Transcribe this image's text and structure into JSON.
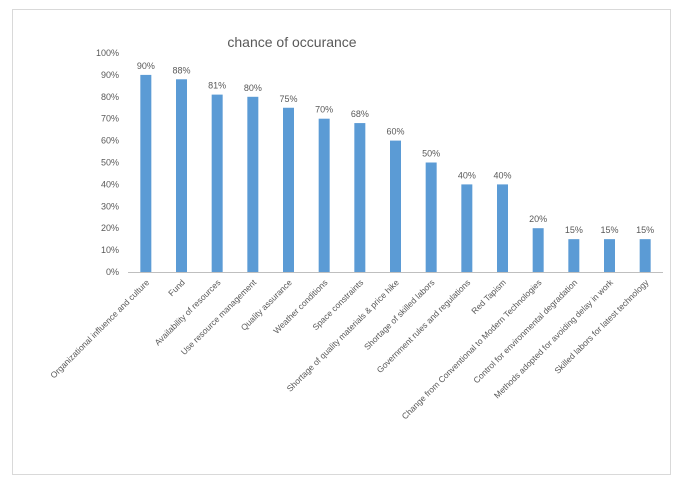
{
  "chart_data": {
    "type": "bar",
    "title": "chance of occurance",
    "xlabel": "",
    "ylabel": "",
    "ylim": [
      0,
      100
    ],
    "yticks": [
      "0%",
      "10%",
      "20%",
      "30%",
      "40%",
      "50%",
      "60%",
      "70%",
      "80%",
      "90%",
      "100%"
    ],
    "grid": false,
    "legend": "none",
    "bar_color": "#5b9bd5",
    "categories": [
      "Organizational influence and culture",
      "Fund",
      "Availability of resources",
      "Use resource management",
      "Quality  assurance",
      "Weather conditions",
      "Space constraints",
      "Shortage of quality materials & price hike",
      "Shortage of skilled labors",
      "Government rules and regulations",
      "Red Tapism",
      "Change from Conventional to Modern Technologies",
      "Control for environmental degradation",
      "Methods adopted for avoiding delay in work",
      "Skilled labors for latest technology"
    ],
    "values": [
      90,
      88,
      81,
      80,
      75,
      70,
      68,
      60,
      50,
      40,
      40,
      20,
      15,
      15,
      15
    ],
    "data_labels": [
      "90%",
      "88%",
      "81%",
      "80%",
      "75%",
      "70%",
      "68%",
      "60%",
      "50%",
      "40%",
      "40%",
      "20%",
      "15%",
      "15%",
      "15%"
    ]
  }
}
